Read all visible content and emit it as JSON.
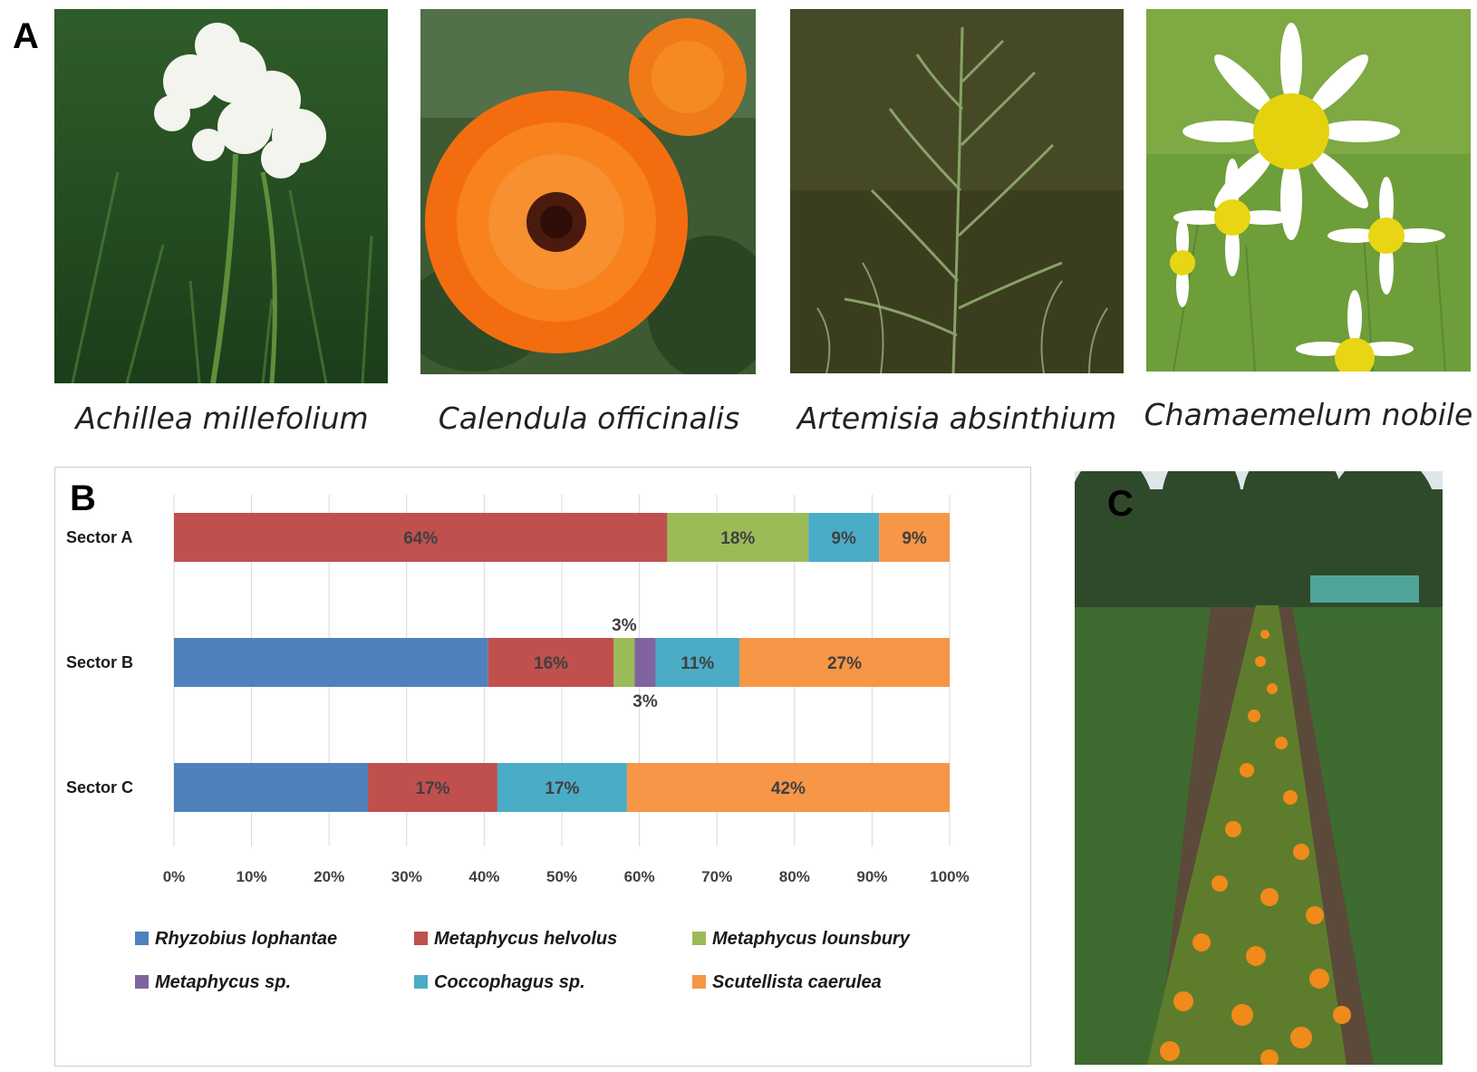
{
  "panel_a": {
    "label": "A",
    "photos": [
      {
        "caption": "Achillea millefolium",
        "icon": "yarrow-photo"
      },
      {
        "caption": "Calendula officinalis",
        "icon": "calendula-photo"
      },
      {
        "caption": "Artemisia absinthium",
        "icon": "wormwood-photo"
      },
      {
        "caption": "Chamaemelum nobile",
        "icon": "chamomile-photo"
      }
    ]
  },
  "panel_c": {
    "label": "C",
    "icon": "calendula-field-photo"
  },
  "chart_data": {
    "type": "bar",
    "orientation": "horizontal",
    "stacked": "percent",
    "panel_label": "B",
    "categories": [
      "Sector A",
      "Sector B",
      "Sector C"
    ],
    "series": [
      {
        "name": "Rhyzobius lophantae",
        "color": "#4f81bd",
        "values": [
          0,
          40.5,
          25
        ]
      },
      {
        "name": "Metaphycus helvolus",
        "color": "#c0504d",
        "values": [
          63.6,
          16.2,
          16.7
        ]
      },
      {
        "name": "Metaphycus lounsbury",
        "color": "#9bbb59",
        "values": [
          18.2,
          2.7,
          0
        ]
      },
      {
        "name": "Metaphycus sp.",
        "color": "#8064a2",
        "values": [
          0,
          2.7,
          0
        ]
      },
      {
        "name": "Coccophagus sp.",
        "color": "#4bacc6",
        "values": [
          9.1,
          10.8,
          16.7
        ]
      },
      {
        "name": "Scutellista caerulea",
        "color": "#f79646",
        "values": [
          9.1,
          27.1,
          41.6
        ]
      }
    ],
    "data_labels": [
      {
        "category": "Sector A",
        "series": "Metaphycus helvolus",
        "text": "64%"
      },
      {
        "category": "Sector A",
        "series": "Metaphycus lounsbury",
        "text": "18%"
      },
      {
        "category": "Sector A",
        "series": "Coccophagus sp.",
        "text": "9%"
      },
      {
        "category": "Sector A",
        "series": "Scutellista caerulea",
        "text": "9%"
      },
      {
        "category": "Sector B",
        "series": "Metaphycus helvolus",
        "text": "16%"
      },
      {
        "category": "Sector B",
        "series": "Metaphycus lounsbury",
        "text": "3%",
        "placement": "above"
      },
      {
        "category": "Sector B",
        "series": "Metaphycus sp.",
        "text": "3%",
        "placement": "below"
      },
      {
        "category": "Sector B",
        "series": "Coccophagus sp.",
        "text": "11%"
      },
      {
        "category": "Sector B",
        "series": "Scutellista caerulea",
        "text": "27%"
      },
      {
        "category": "Sector C",
        "series": "Metaphycus helvolus",
        "text": "17%"
      },
      {
        "category": "Sector C",
        "series": "Coccophagus sp.",
        "text": "17%"
      },
      {
        "category": "Sector C",
        "series": "Scutellista caerulea",
        "text": "42%"
      }
    ],
    "xticks": [
      "0%",
      "10%",
      "20%",
      "30%",
      "40%",
      "50%",
      "60%",
      "70%",
      "80%",
      "90%",
      "100%"
    ],
    "xlim": [
      0,
      100
    ],
    "grid": true,
    "legend_position": "bottom"
  }
}
